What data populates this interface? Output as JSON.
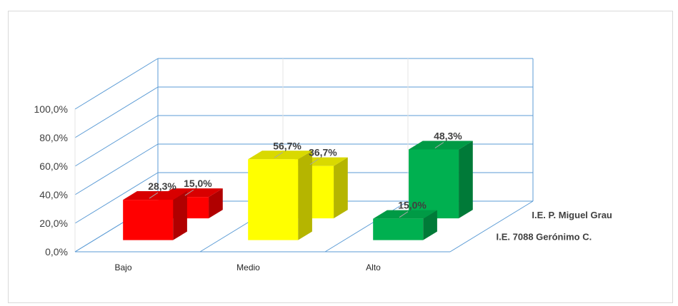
{
  "chart_data": {
    "type": "bar",
    "style": "3d-clustered-depth",
    "categories": [
      "Bajo",
      "Medio",
      "Alto"
    ],
    "series": [
      {
        "name": "I.E. 7088  Gerónimo C.",
        "values": [
          28.3,
          56.7,
          15.0
        ],
        "labels": [
          "28,3%",
          "56,7%",
          "15,0%"
        ]
      },
      {
        "name": "I.E. P. Miguel Grau",
        "values": [
          15.0,
          36.7,
          48.3
        ],
        "labels": [
          "15,0%",
          "36,7%",
          "48,3%"
        ]
      }
    ],
    "category_colors": [
      {
        "front": "#ff0000",
        "side": "#b00000",
        "top": "#d80000"
      },
      {
        "front": "#ffff00",
        "side": "#b5b500",
        "top": "#d9d900"
      },
      {
        "front": "#00b050",
        "side": "#007a38",
        "top": "#009a45"
      }
    ],
    "yticks": [
      "0,0%",
      "20,0%",
      "40,0%",
      "60,0%",
      "80,0%",
      "100,0%"
    ],
    "ylim": [
      0,
      100
    ],
    "gridline_color": "#5b9bd5",
    "grid": true,
    "title": "",
    "xlabel": "",
    "ylabel": ""
  }
}
